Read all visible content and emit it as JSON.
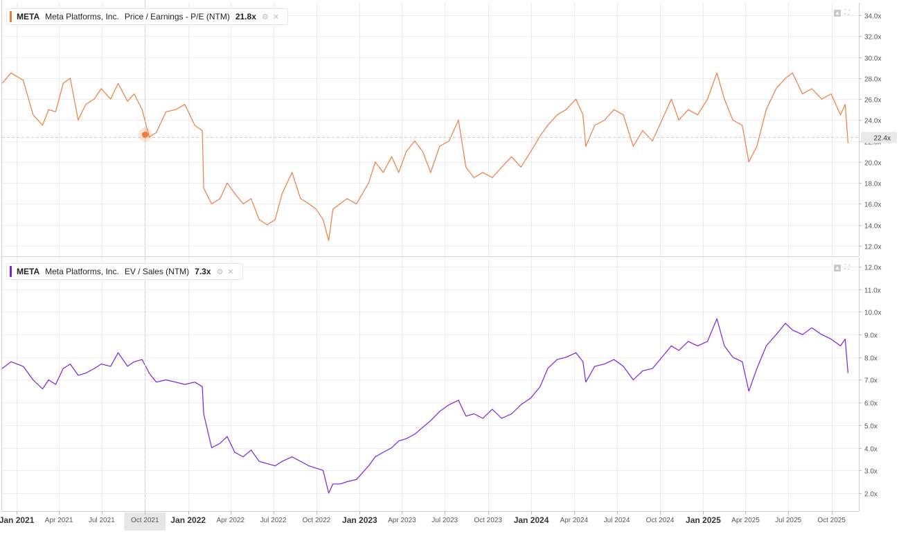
{
  "colors": {
    "pe": "#f07b3f",
    "ev": "#7a1fe0",
    "grid": "#ececec",
    "axis_text": "#555555"
  },
  "x_axis": {
    "ticks": [
      {
        "date": "2021-01-01",
        "label": "Jan 2021",
        "major": true
      },
      {
        "date": "2021-04-01",
        "label": "Apr 2021",
        "major": false
      },
      {
        "date": "2021-07-01",
        "label": "Jul 2021",
        "major": false
      },
      {
        "date": "2021-10-01",
        "label": "Oct 2021",
        "major": false
      },
      {
        "date": "2022-01-01",
        "label": "Jan 2022",
        "major": true
      },
      {
        "date": "2022-04-01",
        "label": "Apr 2022",
        "major": false
      },
      {
        "date": "2022-07-01",
        "label": "Jul 2022",
        "major": false
      },
      {
        "date": "2022-10-01",
        "label": "Oct 2022",
        "major": false
      },
      {
        "date": "2023-01-01",
        "label": "Jan 2023",
        "major": true
      },
      {
        "date": "2023-04-01",
        "label": "Apr 2023",
        "major": false
      },
      {
        "date": "2023-07-01",
        "label": "Jul 2023",
        "major": false
      },
      {
        "date": "2023-10-01",
        "label": "Oct 2023",
        "major": false
      },
      {
        "date": "2024-01-01",
        "label": "Jan 2024",
        "major": true
      },
      {
        "date": "2024-04-01",
        "label": "Apr 2024",
        "major": false
      },
      {
        "date": "2024-07-01",
        "label": "Jul 2024",
        "major": false
      },
      {
        "date": "2024-10-01",
        "label": "Oct 2024",
        "major": false
      },
      {
        "date": "2025-01-01",
        "label": "Jan 2025",
        "major": true
      },
      {
        "date": "2025-04-01",
        "label": "Apr 2025",
        "major": false
      },
      {
        "date": "2025-07-01",
        "label": "Jul 2025",
        "major": false
      },
      {
        "date": "2025-10-01",
        "label": "Oct 2025",
        "major": false
      }
    ],
    "highlighted_tick": "Oct 2021",
    "crosshair_date": "2021-10-01"
  },
  "panels": [
    {
      "legend": {
        "ticker": "META",
        "company": "Meta Platforms, Inc.",
        "metric": "Price / Earnings - P/E (NTM)",
        "value": "21.8x"
      },
      "crosshair_value": 22.4,
      "crosshair_label": "22.4x"
    },
    {
      "legend": {
        "ticker": "META",
        "company": "Meta Platforms, Inc.",
        "metric": "EV / Sales (NTM)",
        "value": "7.3x"
      }
    }
  ],
  "chart_data": [
    {
      "type": "line",
      "title": "",
      "xlabel": "",
      "ylabel": "",
      "xlim": [
        "2020-12-01",
        "2025-11-28"
      ],
      "ylim": [
        11.0,
        35.2
      ],
      "y_ticks": [
        "12.0x",
        "14.0x",
        "16.0x",
        "18.0x",
        "20.0x",
        "22.0x",
        "24.0x",
        "26.0x",
        "28.0x",
        "30.0x",
        "32.0x",
        "34.0x"
      ],
      "y_tick_values": [
        12,
        14,
        16,
        18,
        20,
        22,
        24,
        26,
        28,
        30,
        32,
        34
      ],
      "grid": true,
      "legend_position": "top-left",
      "series": [
        {
          "name": "Price / Earnings - P/E (NTM)",
          "x": [
            "2020-12-01",
            "2020-12-20",
            "2021-01-15",
            "2021-02-05",
            "2021-02-25",
            "2021-03-10",
            "2021-03-25",
            "2021-04-10",
            "2021-04-25",
            "2021-05-12",
            "2021-05-28",
            "2021-06-15",
            "2021-06-30",
            "2021-07-20",
            "2021-08-05",
            "2021-08-25",
            "2021-09-08",
            "2021-09-25",
            "2021-10-10",
            "2021-10-25",
            "2021-11-15",
            "2021-12-05",
            "2021-12-25",
            "2022-01-15",
            "2022-01-31",
            "2022-02-03",
            "2022-02-20",
            "2022-03-10",
            "2022-03-25",
            "2022-04-10",
            "2022-04-28",
            "2022-05-15",
            "2022-06-01",
            "2022-06-18",
            "2022-07-05",
            "2022-07-20",
            "2022-08-10",
            "2022-08-28",
            "2022-09-15",
            "2022-09-30",
            "2022-10-15",
            "2022-10-27",
            "2022-11-05",
            "2022-11-20",
            "2022-12-05",
            "2022-12-25",
            "2023-01-20",
            "2023-02-03",
            "2023-02-20",
            "2023-03-10",
            "2023-03-25",
            "2023-04-10",
            "2023-04-28",
            "2023-05-15",
            "2023-06-01",
            "2023-06-20",
            "2023-07-10",
            "2023-07-30",
            "2023-08-15",
            "2023-09-01",
            "2023-09-20",
            "2023-10-10",
            "2023-10-30",
            "2023-11-20",
            "2023-12-10",
            "2023-12-31",
            "2024-01-20",
            "2024-02-05",
            "2024-02-25",
            "2024-03-15",
            "2024-04-05",
            "2024-04-20",
            "2024-04-26",
            "2024-05-15",
            "2024-06-05",
            "2024-06-25",
            "2024-07-15",
            "2024-08-05",
            "2024-08-25",
            "2024-09-15",
            "2024-10-05",
            "2024-10-25",
            "2024-11-10",
            "2024-11-30",
            "2024-12-20",
            "2025-01-10",
            "2025-01-30",
            "2025-02-15",
            "2025-03-05",
            "2025-03-25",
            "2025-04-08",
            "2025-04-25",
            "2025-05-15",
            "2025-06-05",
            "2025-06-25",
            "2025-07-10",
            "2025-07-31",
            "2025-08-20",
            "2025-09-10",
            "2025-09-30",
            "2025-10-20",
            "2025-10-30",
            "2025-11-05"
          ],
          "values": [
            27.5,
            28.5,
            27.8,
            24.5,
            23.5,
            25.0,
            24.8,
            27.5,
            28.0,
            24.0,
            25.5,
            26.0,
            27.0,
            26.0,
            27.5,
            25.8,
            26.5,
            25.0,
            22.4,
            22.8,
            24.8,
            25.0,
            25.5,
            23.5,
            23.0,
            17.5,
            16.0,
            16.5,
            18.0,
            17.0,
            16.0,
            16.5,
            14.5,
            14.0,
            14.5,
            17.0,
            19.0,
            16.5,
            16.0,
            15.5,
            14.5,
            12.5,
            15.5,
            16.0,
            16.5,
            16.0,
            18.0,
            20.0,
            19.0,
            20.5,
            19.0,
            21.0,
            22.0,
            21.0,
            19.0,
            21.5,
            22.0,
            24.0,
            19.5,
            18.5,
            19.0,
            18.5,
            19.5,
            20.5,
            19.5,
            21.0,
            22.5,
            23.5,
            24.5,
            25.0,
            26.0,
            24.5,
            21.5,
            23.5,
            24.0,
            25.0,
            24.5,
            21.5,
            23.0,
            22.0,
            24.0,
            26.0,
            24.0,
            25.0,
            24.5,
            26.0,
            28.5,
            26.0,
            24.0,
            23.5,
            20.0,
            21.5,
            25.0,
            27.0,
            28.0,
            28.5,
            26.5,
            27.0,
            26.0,
            26.5,
            24.5,
            25.5,
            21.8
          ]
        }
      ]
    },
    {
      "type": "line",
      "title": "",
      "xlabel": "",
      "ylabel": "",
      "xlim": [
        "2020-12-01",
        "2025-11-28"
      ],
      "ylim": [
        1.2,
        12.4
      ],
      "y_ticks": [
        "2.0x",
        "3.0x",
        "4.0x",
        "5.0x",
        "6.0x",
        "7.0x",
        "8.0x",
        "9.0x",
        "10.0x",
        "11.0x",
        "12.0x"
      ],
      "y_tick_values": [
        2,
        3,
        4,
        5,
        6,
        7,
        8,
        9,
        10,
        11,
        12
      ],
      "grid": true,
      "legend_position": "top-left",
      "series": [
        {
          "name": "EV / Sales (NTM)",
          "x": [
            "2020-12-01",
            "2020-12-20",
            "2021-01-15",
            "2021-02-05",
            "2021-02-25",
            "2021-03-10",
            "2021-03-25",
            "2021-04-10",
            "2021-04-25",
            "2021-05-12",
            "2021-05-28",
            "2021-06-15",
            "2021-06-30",
            "2021-07-20",
            "2021-08-05",
            "2021-08-25",
            "2021-09-08",
            "2021-09-25",
            "2021-10-10",
            "2021-10-25",
            "2021-11-15",
            "2021-12-05",
            "2021-12-25",
            "2022-01-15",
            "2022-01-31",
            "2022-02-03",
            "2022-02-20",
            "2022-03-10",
            "2022-03-25",
            "2022-04-10",
            "2022-04-28",
            "2022-05-15",
            "2022-06-01",
            "2022-06-18",
            "2022-07-05",
            "2022-07-20",
            "2022-08-10",
            "2022-08-28",
            "2022-09-15",
            "2022-09-30",
            "2022-10-15",
            "2022-10-27",
            "2022-11-05",
            "2022-11-20",
            "2022-12-05",
            "2022-12-25",
            "2023-01-20",
            "2023-02-03",
            "2023-02-20",
            "2023-03-10",
            "2023-03-25",
            "2023-04-10",
            "2023-04-28",
            "2023-05-15",
            "2023-06-01",
            "2023-06-20",
            "2023-07-10",
            "2023-07-30",
            "2023-08-15",
            "2023-09-01",
            "2023-09-20",
            "2023-10-10",
            "2023-10-30",
            "2023-11-20",
            "2023-12-10",
            "2023-12-31",
            "2024-01-20",
            "2024-02-05",
            "2024-02-25",
            "2024-03-15",
            "2024-04-05",
            "2024-04-20",
            "2024-04-26",
            "2024-05-15",
            "2024-06-05",
            "2024-06-25",
            "2024-07-15",
            "2024-08-05",
            "2024-08-25",
            "2024-09-15",
            "2024-10-05",
            "2024-10-25",
            "2024-11-10",
            "2024-11-30",
            "2024-12-20",
            "2025-01-10",
            "2025-01-30",
            "2025-02-15",
            "2025-03-05",
            "2025-03-25",
            "2025-04-08",
            "2025-04-25",
            "2025-05-15",
            "2025-06-05",
            "2025-06-25",
            "2025-07-10",
            "2025-07-31",
            "2025-08-20",
            "2025-09-10",
            "2025-09-30",
            "2025-10-20",
            "2025-10-30",
            "2025-11-05"
          ],
          "values": [
            7.5,
            7.8,
            7.6,
            7.0,
            6.6,
            7.0,
            6.8,
            7.5,
            7.7,
            7.2,
            7.3,
            7.5,
            7.7,
            7.6,
            8.2,
            7.6,
            7.8,
            7.9,
            7.3,
            6.9,
            7.0,
            6.9,
            6.8,
            6.9,
            6.7,
            5.5,
            4.0,
            4.2,
            4.5,
            3.8,
            3.6,
            3.9,
            3.4,
            3.3,
            3.2,
            3.4,
            3.6,
            3.4,
            3.2,
            3.1,
            3.0,
            2.0,
            2.4,
            2.4,
            2.5,
            2.6,
            3.2,
            3.6,
            3.8,
            4.0,
            4.3,
            4.4,
            4.6,
            4.9,
            5.2,
            5.6,
            5.9,
            6.1,
            5.4,
            5.5,
            5.3,
            5.7,
            5.3,
            5.5,
            5.9,
            6.2,
            6.7,
            7.5,
            7.9,
            8.0,
            8.2,
            7.8,
            6.9,
            7.6,
            7.7,
            7.9,
            7.6,
            7.0,
            7.4,
            7.5,
            8.0,
            8.5,
            8.3,
            8.7,
            8.5,
            8.7,
            9.7,
            8.5,
            8.0,
            7.8,
            6.5,
            7.5,
            8.5,
            9.0,
            9.5,
            9.2,
            9.0,
            9.3,
            9.0,
            8.8,
            8.5,
            8.8,
            7.3
          ]
        }
      ]
    }
  ]
}
